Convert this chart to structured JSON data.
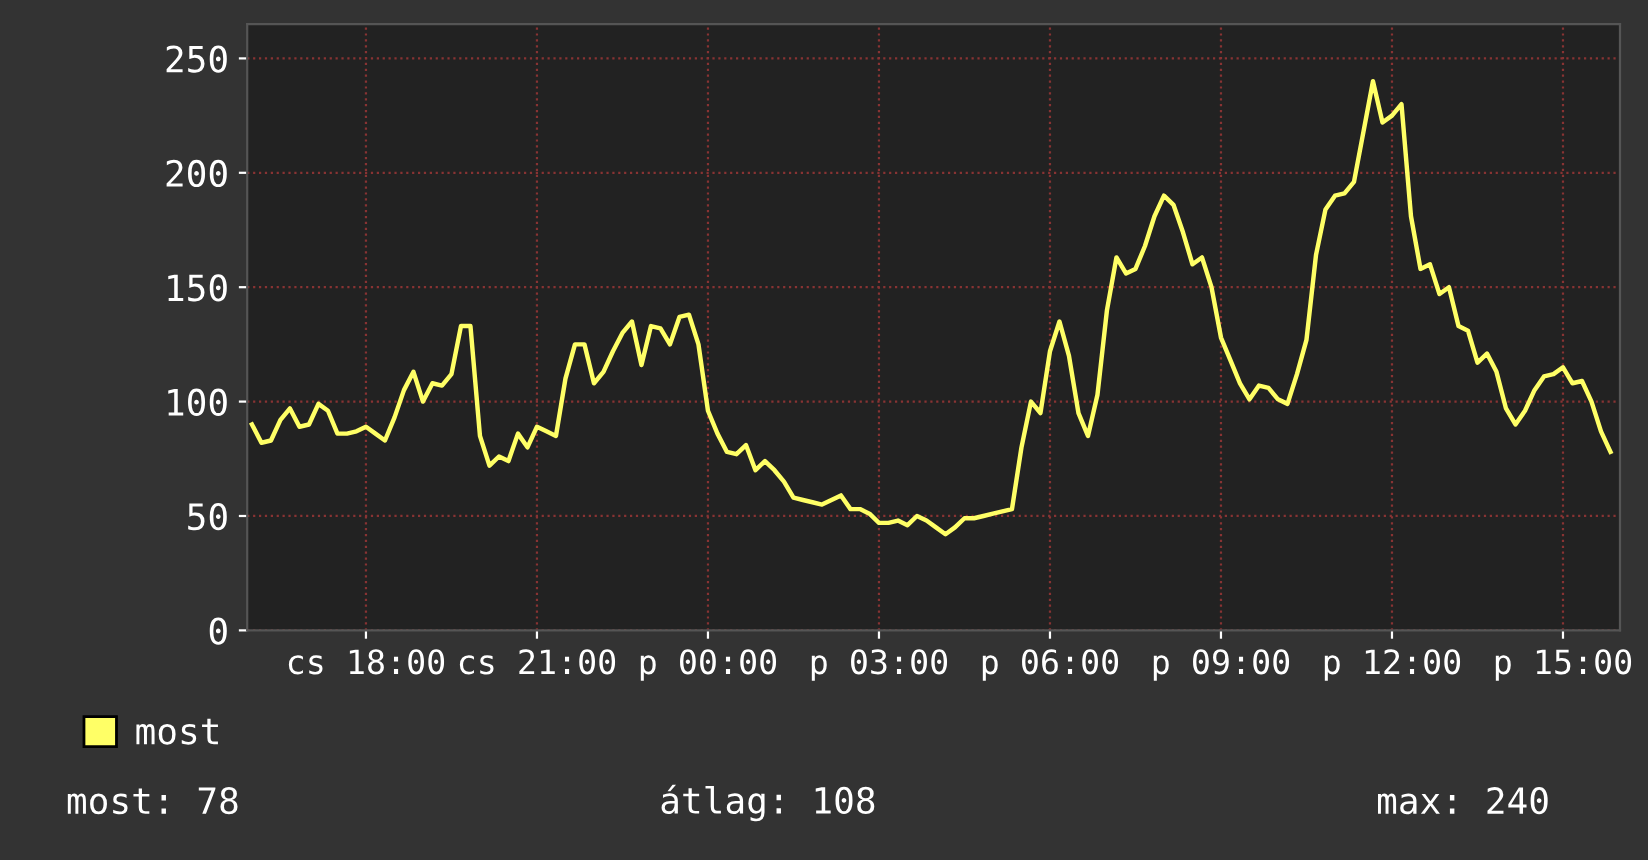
{
  "chart_data": {
    "type": "line",
    "categories": [
      null,
      null,
      null,
      null,
      null,
      null,
      null,
      null,
      null,
      null,
      null,
      null,
      "cs 18:00",
      null,
      null,
      null,
      null,
      null,
      null,
      null,
      null,
      null,
      null,
      null,
      null,
      null,
      null,
      null,
      null,
      null,
      "cs 21:00",
      null,
      null,
      null,
      null,
      null,
      null,
      null,
      null,
      null,
      null,
      null,
      null,
      null,
      null,
      null,
      null,
      null,
      "p 00:00",
      null,
      null,
      null,
      null,
      null,
      null,
      null,
      null,
      null,
      null,
      null,
      null,
      null,
      null,
      null,
      null,
      null,
      "p 03:00",
      null,
      null,
      null,
      null,
      null,
      null,
      null,
      null,
      null,
      null,
      null,
      null,
      null,
      null,
      null,
      null,
      null,
      "p 06:00",
      null,
      null,
      null,
      null,
      null,
      null,
      null,
      null,
      null,
      null,
      null,
      null,
      null,
      null,
      null,
      null,
      null,
      "p 09:00",
      null,
      null,
      null,
      null,
      null,
      null,
      null,
      null,
      null,
      null,
      null,
      null,
      null,
      null,
      null,
      null,
      null,
      "p 12:00",
      null,
      null,
      null,
      null,
      null,
      null,
      null,
      null,
      null,
      null,
      null,
      null,
      null,
      null,
      null,
      null,
      null,
      "p 15:00",
      null,
      null,
      null,
      null,
      null
    ],
    "ylim": [
      0,
      265
    ],
    "yticks": [
      0,
      50,
      100,
      150,
      200,
      250
    ],
    "grid": true,
    "legend": "bottom left",
    "marker": "none",
    "line_style": "solid",
    "series": [
      {
        "name": "most",
        "color": "#ffff66",
        "values": [
          90,
          82,
          83,
          92,
          97,
          89,
          90,
          99,
          96,
          86,
          86,
          87,
          89,
          86,
          83,
          93,
          105,
          113,
          100,
          108,
          107,
          112,
          133,
          133,
          85,
          72,
          76,
          74,
          86,
          80,
          89,
          87,
          85,
          110,
          125,
          125,
          108,
          113,
          122,
          130,
          135,
          116,
          133,
          132,
          125,
          137,
          138,
          125,
          96,
          86,
          78,
          77,
          81,
          70,
          74,
          70,
          65,
          58,
          57,
          56,
          55,
          57,
          59,
          53,
          53,
          51,
          47,
          47,
          48,
          46,
          50,
          48,
          45,
          42,
          45,
          49,
          49,
          50,
          51,
          52,
          53,
          80,
          100,
          95,
          122,
          135,
          120,
          95,
          85,
          103,
          140,
          163,
          156,
          158,
          168,
          181,
          190,
          186,
          174,
          160,
          163,
          150,
          128,
          118,
          108,
          101,
          107,
          106,
          101,
          99,
          112,
          127,
          164,
          184,
          190,
          191,
          196,
          218,
          240,
          222,
          225,
          230,
          181,
          158,
          160,
          147,
          150,
          133,
          131,
          117,
          121,
          113,
          97,
          90,
          96,
          105,
          111,
          112,
          115,
          108,
          109,
          100,
          87,
          78
        ]
      }
    ],
    "annotations": [
      "most: 78",
      "átlag: 108",
      "max: 240"
    ]
  }
}
